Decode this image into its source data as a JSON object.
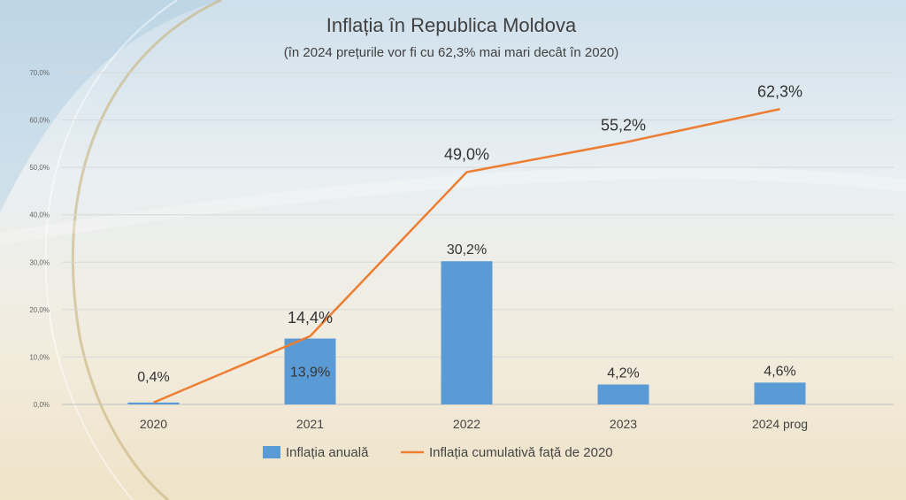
{
  "chart_data": {
    "type": "bar",
    "title": "Inflația în Republica Moldova",
    "subtitle": "(în 2024 prețurile vor fi cu 62,3% mai mari decât în 2020)",
    "categories": [
      "2020",
      "2021",
      "2022",
      "2023",
      "2024 prog"
    ],
    "series": [
      {
        "name": "Inflația anuală",
        "type": "bar",
        "values": [
          0.4,
          13.9,
          30.2,
          4.2,
          4.6
        ],
        "labels": [
          "0,4%",
          "13,9%",
          "30,2%",
          "4,2%",
          "4,6%"
        ],
        "color": "#5b9bd5"
      },
      {
        "name": "Inflația cumulativă față de 2020",
        "type": "line",
        "values": [
          0.4,
          14.4,
          49.0,
          55.2,
          62.3
        ],
        "labels": [
          "0,4%",
          "14,4%",
          "49,0%",
          "55,2%",
          "62,3%"
        ],
        "color": "#ed7d31"
      }
    ],
    "ylim": [
      0,
      70
    ],
    "yticks": [
      "0,0%",
      "10,0%",
      "20,0%",
      "30,0%",
      "40,0%",
      "50,0%",
      "60,0%",
      "70,0%"
    ],
    "grid": true,
    "legend_position": "bottom"
  }
}
